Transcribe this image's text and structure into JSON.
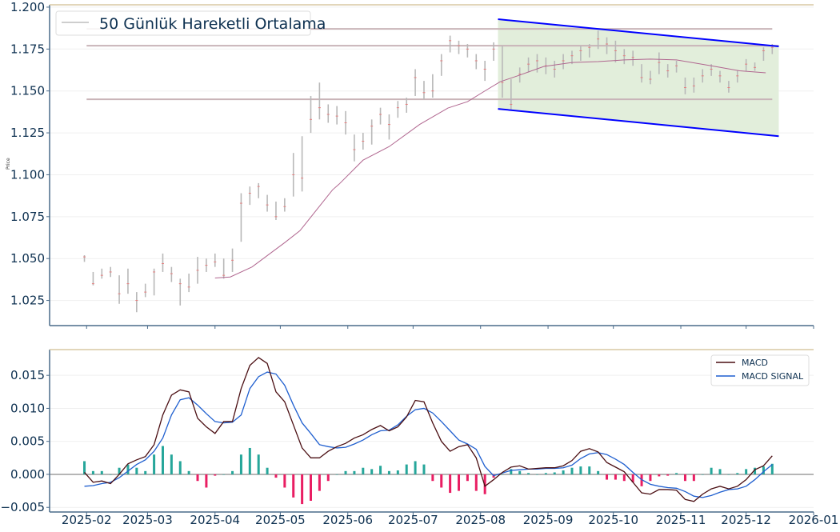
{
  "chart_data": [
    {
      "type": "ohlc",
      "ylabel": "Price",
      "ylim": [
        1.01,
        1.2014
      ],
      "xlim": [
        "2025-01-15",
        "2026-01-01"
      ],
      "yticks": [
        "1.025",
        "1.050",
        "1.075",
        "1.100",
        "1.125",
        "1.150",
        "1.175",
        "1.200"
      ],
      "grid": true,
      "legend": {
        "position": "top-left",
        "entries": [
          "50 Günlük Hareketli Ortalama"
        ]
      },
      "colors": {
        "bar": "#b8b8b8",
        "close_tick": "#e87c7c",
        "ma": "#b0668f",
        "level": "#c9b4b8",
        "channel": "#0000ff",
        "channel_fill": "#e2eedb"
      },
      "dates": [
        "2025-01-31",
        "2025-02-04",
        "2025-02-08",
        "2025-02-12",
        "2025-02-16",
        "2025-02-20",
        "2025-02-24",
        "2025-02-28",
        "2025-03-04",
        "2025-03-08",
        "2025-03-12",
        "2025-03-16",
        "2025-03-20",
        "2025-03-24",
        "2025-03-28",
        "2025-04-01",
        "2025-04-05",
        "2025-04-09",
        "2025-04-13",
        "2025-04-17",
        "2025-04-21",
        "2025-04-25",
        "2025-04-29",
        "2025-05-03",
        "2025-05-07",
        "2025-05-11",
        "2025-05-15",
        "2025-05-19",
        "2025-05-23",
        "2025-05-27",
        "2025-05-31",
        "2025-06-04",
        "2025-06-08",
        "2025-06-12",
        "2025-06-16",
        "2025-06-20",
        "2025-06-24",
        "2025-06-28",
        "2025-07-02",
        "2025-07-06",
        "2025-07-10",
        "2025-07-14",
        "2025-07-18",
        "2025-07-22",
        "2025-07-26",
        "2025-07-30",
        "2025-08-03",
        "2025-08-07",
        "2025-08-11",
        "2025-08-15",
        "2025-08-19",
        "2025-08-23",
        "2025-08-27",
        "2025-08-31",
        "2025-09-04",
        "2025-09-08",
        "2025-09-12",
        "2025-09-16",
        "2025-09-20",
        "2025-09-24",
        "2025-09-28",
        "2025-10-02",
        "2025-10-06",
        "2025-10-10",
        "2025-10-14",
        "2025-10-18",
        "2025-10-22",
        "2025-10-26",
        "2025-10-30",
        "2025-11-03",
        "2025-11-07",
        "2025-11-11",
        "2025-11-15",
        "2025-11-19",
        "2025-11-23",
        "2025-11-27",
        "2025-12-01",
        "2025-12-05",
        "2025-12-09",
        "2025-12-13"
      ],
      "close": [
        1.051,
        1.035,
        1.04,
        1.042,
        1.029,
        1.035,
        1.025,
        1.03,
        1.042,
        1.047,
        1.041,
        1.035,
        1.033,
        1.043,
        1.046,
        1.048,
        1.04,
        1.049,
        1.083,
        1.089,
        1.093,
        1.082,
        1.075,
        1.081,
        1.1,
        1.098,
        1.133,
        1.14,
        1.136,
        1.135,
        1.131,
        1.115,
        1.12,
        1.129,
        1.136,
        1.13,
        1.14,
        1.142,
        1.158,
        1.149,
        1.15,
        1.168,
        1.18,
        1.177,
        1.175,
        1.168,
        1.163,
        1.175,
        1.155,
        1.142,
        1.16,
        1.166,
        1.168,
        1.165,
        1.163,
        1.168,
        1.171,
        1.174,
        1.176,
        1.181,
        1.178,
        1.174,
        1.171,
        1.17,
        1.158,
        1.157,
        1.167,
        1.162,
        1.165,
        1.152,
        1.153,
        1.159,
        1.163,
        1.159,
        1.152,
        1.159,
        1.166,
        1.164,
        1.174,
        1.176
      ],
      "low": [
        1.048,
        1.034,
        1.038,
        1.039,
        1.023,
        1.029,
        1.018,
        1.027,
        1.028,
        1.042,
        1.036,
        1.022,
        1.03,
        1.035,
        1.042,
        1.045,
        1.038,
        1.042,
        1.06,
        1.082,
        1.086,
        1.078,
        1.073,
        1.078,
        1.087,
        1.09,
        1.125,
        1.133,
        1.131,
        1.13,
        1.124,
        1.108,
        1.115,
        1.118,
        1.13,
        1.121,
        1.134,
        1.137,
        1.147,
        1.145,
        1.146,
        1.159,
        1.173,
        1.172,
        1.17,
        1.163,
        1.156,
        1.168,
        1.146,
        1.139,
        1.155,
        1.161,
        1.161,
        1.16,
        1.158,
        1.163,
        1.166,
        1.168,
        1.17,
        1.175,
        1.172,
        1.167,
        1.166,
        1.165,
        1.155,
        1.154,
        1.16,
        1.158,
        1.161,
        1.148,
        1.149,
        1.155,
        1.159,
        1.155,
        1.149,
        1.155,
        1.162,
        1.162,
        1.168,
        1.172
      ],
      "high": [
        1.052,
        1.042,
        1.044,
        1.045,
        1.04,
        1.044,
        1.03,
        1.035,
        1.044,
        1.053,
        1.045,
        1.038,
        1.041,
        1.051,
        1.05,
        1.053,
        1.05,
        1.056,
        1.089,
        1.093,
        1.095,
        1.088,
        1.084,
        1.086,
        1.113,
        1.123,
        1.147,
        1.155,
        1.142,
        1.141,
        1.138,
        1.124,
        1.125,
        1.133,
        1.14,
        1.136,
        1.144,
        1.146,
        1.163,
        1.156,
        1.16,
        1.172,
        1.183,
        1.18,
        1.178,
        1.172,
        1.168,
        1.179,
        1.177,
        1.157,
        1.164,
        1.17,
        1.172,
        1.17,
        1.168,
        1.172,
        1.174,
        1.177,
        1.178,
        1.186,
        1.182,
        1.18,
        1.175,
        1.174,
        1.166,
        1.162,
        1.173,
        1.166,
        1.168,
        1.158,
        1.158,
        1.163,
        1.166,
        1.162,
        1.156,
        1.162,
        1.169,
        1.167,
        1.176,
        1.178
      ],
      "moving_average_50": {
        "name": "50 Günlük Hareketli Ortalama",
        "points": [
          [
            "2025-04-01",
            1.0384
          ],
          [
            "2025-04-08",
            1.039
          ],
          [
            "2025-04-18",
            1.045
          ],
          [
            "2025-04-27",
            1.0537
          ],
          [
            "2025-05-03",
            1.0595
          ],
          [
            "2025-05-10",
            1.0666
          ],
          [
            "2025-05-25",
            1.091
          ],
          [
            "2025-05-28",
            1.0944
          ],
          [
            "2025-06-08",
            1.1087
          ],
          [
            "2025-06-20",
            1.1168
          ],
          [
            "2025-07-04",
            1.13
          ],
          [
            "2025-07-17",
            1.1398
          ],
          [
            "2025-07-26",
            1.1436
          ],
          [
            "2025-08-04",
            1.1508
          ],
          [
            "2025-08-10",
            1.1555
          ],
          [
            "2025-08-18",
            1.159
          ],
          [
            "2025-08-30",
            1.1646
          ],
          [
            "2025-09-12",
            1.167
          ],
          [
            "2025-09-24",
            1.1675
          ],
          [
            "2025-10-06",
            1.1685
          ],
          [
            "2025-10-18",
            1.169
          ],
          [
            "2025-10-30",
            1.1685
          ],
          [
            "2025-11-15",
            1.165
          ],
          [
            "2025-11-28",
            1.162
          ],
          [
            "2025-12-10",
            1.1608
          ]
        ]
      },
      "horizontal_levels": [
        {
          "value": 1.187,
          "from": "2025-02-01",
          "to": "2025-12-13"
        },
        {
          "value": 1.177,
          "from": "2025-02-01",
          "to": "2025-12-16"
        },
        {
          "value": 1.145,
          "from": "2025-02-01",
          "to": "2025-12-13"
        }
      ],
      "channel": {
        "start": "2025-08-09",
        "end": "2025-12-16",
        "upper": [
          1.1928,
          1.1766
        ],
        "lower": [
          1.1393,
          1.123
        ]
      }
    },
    {
      "type": "line+bar",
      "ylim": [
        -0.0057,
        0.0189
      ],
      "xlim": [
        "2025-01-15",
        "2026-01-01"
      ],
      "yticks": [
        "−0.005",
        "0.000",
        "0.005",
        "0.010",
        "0.015"
      ],
      "xticks": [
        "2025-02",
        "2025-03",
        "2025-04",
        "2025-05",
        "2025-06",
        "2025-07",
        "2025-08",
        "2025-09",
        "2025-10",
        "2025-11",
        "2025-12",
        "2026-01"
      ],
      "grid": true,
      "legend": {
        "position": "top-right"
      },
      "colors": {
        "macd": "#4a0e12",
        "signal": "#1f5fcf",
        "hist_pos": "#26a69a",
        "hist_neg": "#e91e63",
        "zero": "#9e9e9e"
      },
      "series": [
        {
          "name": "MACD",
          "values": [
            0.0003,
            -0.0012,
            -0.001,
            -0.0014,
            0.0,
            0.0016,
            0.0022,
            0.0027,
            0.0045,
            0.009,
            0.012,
            0.0128,
            0.0125,
            0.0085,
            0.0072,
            0.0062,
            0.008,
            0.008,
            0.013,
            0.0165,
            0.0177,
            0.0168,
            0.0125,
            0.011,
            0.0075,
            0.004,
            0.0025,
            0.0025,
            0.0035,
            0.0042,
            0.0047,
            0.0055,
            0.006,
            0.0068,
            0.0074,
            0.0066,
            0.0072,
            0.0087,
            0.0112,
            0.011,
            0.0078,
            0.005,
            0.0035,
            0.0042,
            0.0045,
            0.0025,
            -0.0018,
            -0.0008,
            0.0003,
            0.0011,
            0.0013,
            0.0008,
            0.0009,
            0.001,
            0.001,
            0.0013,
            0.0021,
            0.0035,
            0.0039,
            0.0034,
            0.0018,
            0.0011,
            0.0004,
            -0.0012,
            -0.0028,
            -0.003,
            -0.0023,
            -0.0023,
            -0.0024,
            -0.0038,
            -0.0041,
            -0.003,
            -0.0022,
            -0.0018,
            -0.0022,
            -0.0018,
            -0.0008,
            0.0007,
            0.0013,
            0.0028
          ]
        },
        {
          "name": "MACD SIGNAL",
          "values": [
            -0.0018,
            -0.0017,
            -0.0014,
            -0.0012,
            -0.0005,
            0.0005,
            0.0015,
            0.0022,
            0.0035,
            0.0055,
            0.009,
            0.0113,
            0.0116,
            0.0105,
            0.0092,
            0.008,
            0.0078,
            0.0079,
            0.009,
            0.013,
            0.0148,
            0.0155,
            0.0152,
            0.0135,
            0.0105,
            0.0078,
            0.0062,
            0.0045,
            0.0042,
            0.004,
            0.0041,
            0.0046,
            0.0052,
            0.006,
            0.0066,
            0.0067,
            0.0075,
            0.0088,
            0.0098,
            0.01,
            0.0093,
            0.008,
            0.0066,
            0.0052,
            0.0046,
            0.0038,
            0.0012,
            -0.0002,
            0.0002,
            0.0006,
            0.0007,
            0.0008,
            0.0008,
            0.0009,
            0.0009,
            0.001,
            0.0014,
            0.0024,
            0.0031,
            0.0033,
            0.003,
            0.0023,
            0.0015,
            0.0003,
            -0.0008,
            -0.0015,
            -0.0018,
            -0.002,
            -0.0021,
            -0.0026,
            -0.0033,
            -0.0035,
            -0.0032,
            -0.0027,
            -0.0023,
            -0.0022,
            -0.0018,
            -0.0008,
            0.0004,
            0.0015
          ]
        },
        {
          "histogram": [
            0.002,
            0.0005,
            0.0005,
            0.0,
            0.001,
            0.0015,
            0.001,
            0.0005,
            0.003,
            0.0043,
            0.003,
            0.002,
            0.0005,
            -0.001,
            -0.002,
            -0.0002,
            0.0,
            0.0005,
            0.003,
            0.004,
            0.003,
            0.001,
            -0.0005,
            -0.002,
            -0.0035,
            -0.0045,
            -0.004,
            -0.0025,
            -0.001,
            0.0,
            0.0005,
            0.0005,
            0.001,
            0.0008,
            0.0013,
            0.0005,
            0.0006,
            0.0015,
            0.002,
            0.0015,
            -0.001,
            -0.002,
            -0.0028,
            -0.0025,
            -0.001,
            -0.0025,
            -0.003,
            -0.0005,
            0.0,
            0.0008,
            0.0005,
            0.0002,
            0.0,
            0.0002,
            0.0003,
            0.0006,
            0.001,
            0.0012,
            0.0012,
            0.0005,
            -0.0008,
            -0.0008,
            -0.001,
            -0.0012,
            -0.0018,
            -0.001,
            -0.0003,
            -0.0002,
            0.0002,
            -0.001,
            -0.001,
            0.0,
            0.001,
            0.0008,
            0.0,
            0.0002,
            0.0008,
            0.001,
            0.0012,
            0.0016
          ]
        }
      ]
    }
  ],
  "legend_top": {
    "label": "50 Günlük Hareketli Ortalama"
  },
  "legend_bottom": {
    "macd": "MACD",
    "signal": "MACD SIGNAL"
  }
}
